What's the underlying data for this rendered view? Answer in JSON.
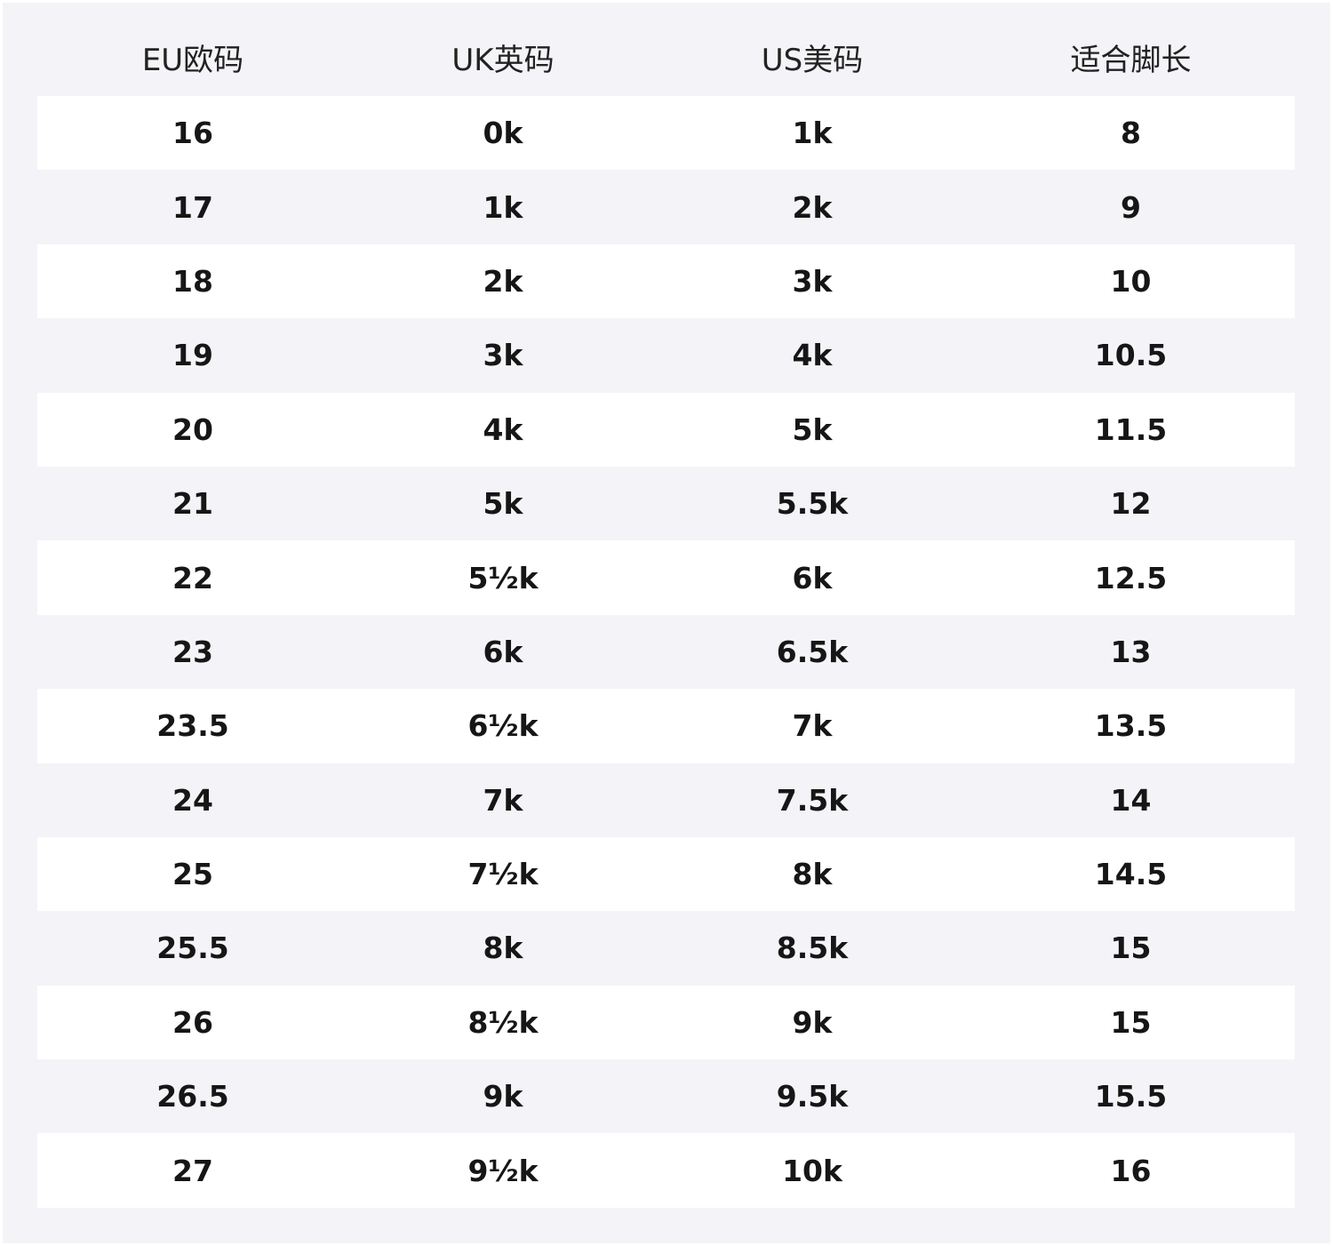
{
  "table": {
    "header": [
      "EU欧码",
      "UK英码",
      "US美码",
      "适合脚长"
    ],
    "rows": [
      [
        "16",
        "0k",
        "1k",
        "8"
      ],
      [
        "17",
        "1k",
        "2k",
        "9"
      ],
      [
        "18",
        "2k",
        "3k",
        "10"
      ],
      [
        "19",
        "3k",
        "4k",
        "10.5"
      ],
      [
        "20",
        "4k",
        "5k",
        "11.5"
      ],
      [
        "21",
        "5k",
        "5.5k",
        "12"
      ],
      [
        "22",
        "5½k",
        "6k",
        "12.5"
      ],
      [
        "23",
        "6k",
        "6.5k",
        "13"
      ],
      [
        "23.5",
        "6½k",
        "7k",
        "13.5"
      ],
      [
        "24",
        "7k",
        "7.5k",
        "14"
      ],
      [
        "25",
        "7½k",
        "8k",
        "14.5"
      ],
      [
        "25.5",
        "8k",
        "8.5k",
        "15"
      ],
      [
        "26",
        "8½k",
        "9k",
        "15"
      ],
      [
        "26.5",
        "9k",
        "9.5k",
        "15.5"
      ],
      [
        "27",
        "9½k",
        "10k",
        "16"
      ]
    ]
  }
}
